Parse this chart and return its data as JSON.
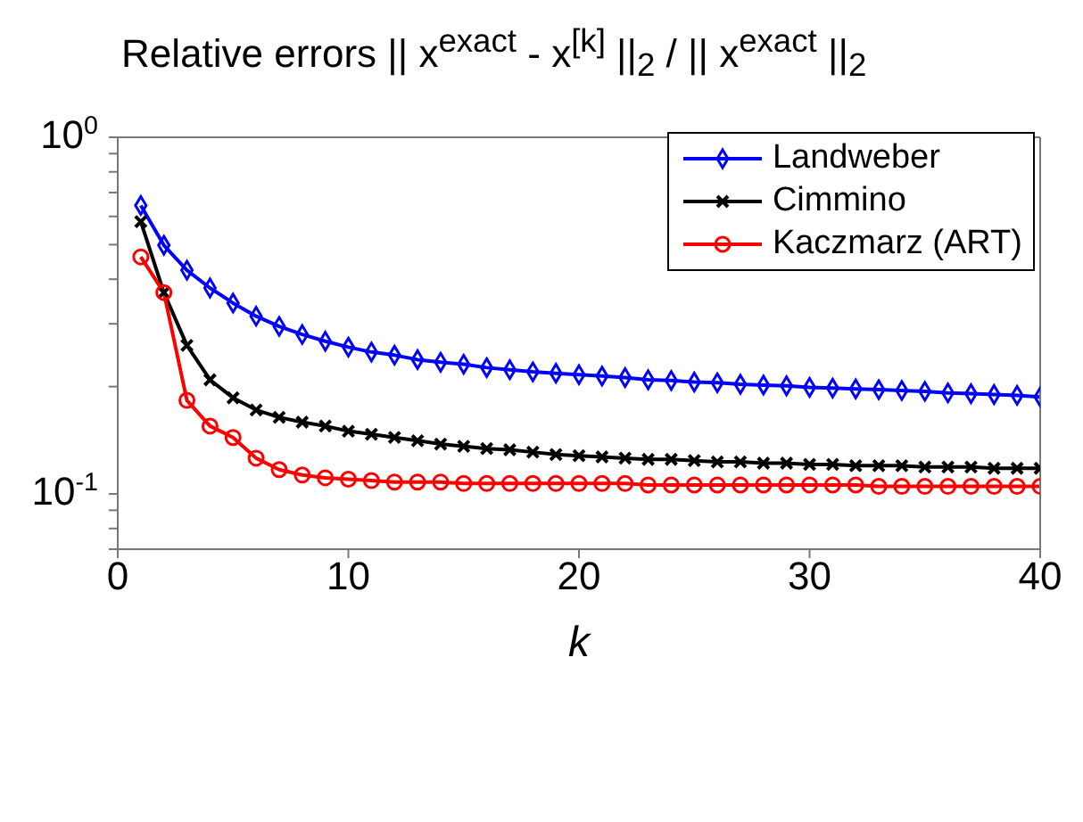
{
  "chart_data": {
    "type": "line",
    "title": "Relative errors   || x$^{exact}$ -  x$^{[k]}$ ||$_{2}$ / || x$^{exact}$ ||$_{2}$",
    "xlabel": "k",
    "x": [
      1,
      2,
      3,
      4,
      5,
      6,
      7,
      8,
      9,
      10,
      11,
      12,
      13,
      14,
      15,
      16,
      17,
      18,
      19,
      20,
      21,
      22,
      23,
      24,
      25,
      26,
      27,
      28,
      29,
      30,
      31,
      32,
      33,
      34,
      35,
      36,
      37,
      38,
      39,
      40
    ],
    "series": [
      {
        "name": "Landweber",
        "color": "#0000ff",
        "marker": "diamond",
        "values": [
          0.644,
          0.498,
          0.424,
          0.378,
          0.343,
          0.315,
          0.295,
          0.28,
          0.268,
          0.258,
          0.25,
          0.245,
          0.238,
          0.234,
          0.231,
          0.226,
          0.223,
          0.22,
          0.218,
          0.216,
          0.214,
          0.212,
          0.209,
          0.208,
          0.206,
          0.205,
          0.203,
          0.202,
          0.201,
          0.199,
          0.198,
          0.197,
          0.196,
          0.195,
          0.194,
          0.192,
          0.191,
          0.19,
          0.189,
          0.187
        ]
      },
      {
        "name": "Cimmino",
        "color": "#000000",
        "marker": "cross",
        "values": [
          0.58,
          0.367,
          0.261,
          0.209,
          0.186,
          0.172,
          0.164,
          0.159,
          0.155,
          0.15,
          0.147,
          0.144,
          0.141,
          0.138,
          0.136,
          0.134,
          0.133,
          0.131,
          0.129,
          0.128,
          0.127,
          0.126,
          0.125,
          0.125,
          0.124,
          0.123,
          0.123,
          0.122,
          0.122,
          0.121,
          0.121,
          0.12,
          0.12,
          0.12,
          0.119,
          0.119,
          0.119,
          0.118,
          0.118,
          0.118
        ]
      },
      {
        "name": "Kaczmarz (ART)",
        "color": "#ff0000",
        "marker": "circle",
        "values": [
          0.462,
          0.367,
          0.183,
          0.155,
          0.144,
          0.126,
          0.117,
          0.113,
          0.111,
          0.11,
          0.109,
          0.108,
          0.108,
          0.108,
          0.107,
          0.107,
          0.107,
          0.107,
          0.107,
          0.107,
          0.107,
          0.107,
          0.106,
          0.106,
          0.106,
          0.106,
          0.106,
          0.106,
          0.106,
          0.106,
          0.106,
          0.106,
          0.105,
          0.105,
          0.105,
          0.105,
          0.105,
          0.105,
          0.105,
          0.105
        ]
      }
    ],
    "log": true,
    "xlim": [
      0,
      40
    ],
    "xticks": [
      0,
      10,
      20,
      30,
      40
    ],
    "ylim": [
      0.07,
      1
    ],
    "yticks": [
      {
        "value": 0.07,
        "label": null
      },
      {
        "value": 0.08,
        "label": null
      },
      {
        "value": 0.09,
        "label": null
      },
      {
        "value": 0.1,
        "label": "10$^{-1}$"
      },
      {
        "value": 0.2,
        "label": null
      },
      {
        "value": 0.3,
        "label": null
      },
      {
        "value": 0.4,
        "label": null
      },
      {
        "value": 0.5,
        "label": null
      },
      {
        "value": 0.6,
        "label": null
      },
      {
        "value": 0.7,
        "label": null
      },
      {
        "value": 0.8,
        "label": null
      },
      {
        "value": 0.9,
        "label": null
      },
      {
        "value": 1,
        "label": "10$^{0}$"
      }
    ],
    "grid": false,
    "legend": "top right"
  }
}
